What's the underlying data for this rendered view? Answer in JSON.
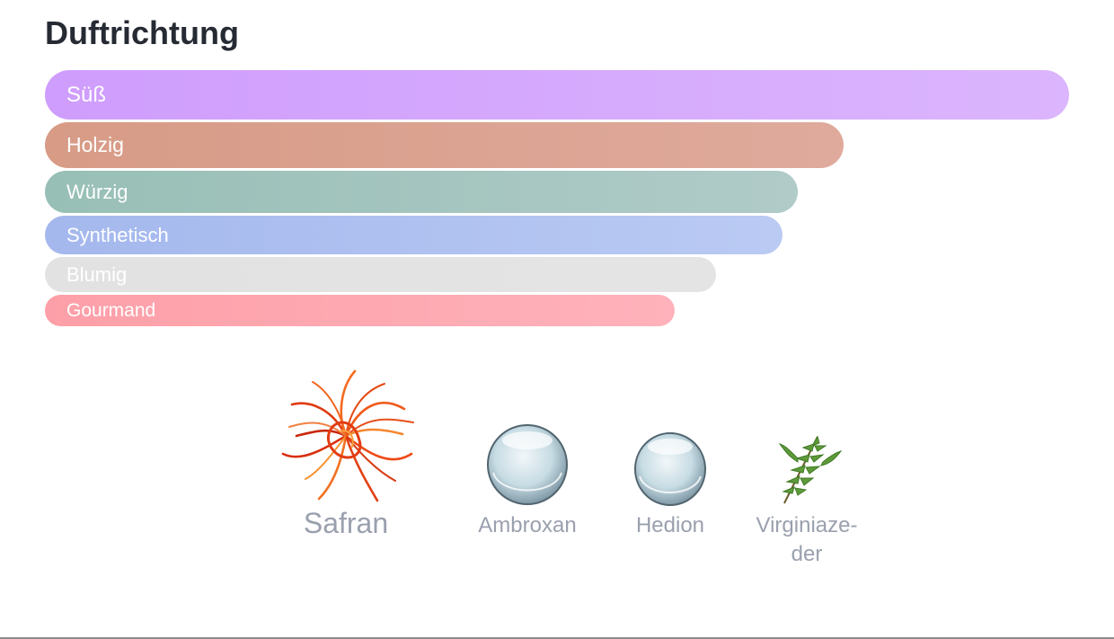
{
  "page": {
    "title": "Duftrichtung"
  },
  "chart_data": {
    "type": "bar",
    "orientation": "horizontal",
    "title": "Duftrichtung",
    "categories": [
      "Süß",
      "Holzig",
      "Würzig",
      "Synthetisch",
      "Blumig",
      "Gourmand"
    ],
    "values": [
      100,
      78,
      73.5,
      72,
      65.5,
      61.5
    ],
    "xlim": [
      0,
      100
    ],
    "grid": false,
    "colors": [
      [
        "#cf9dfd",
        "#dbb5fd"
      ],
      [
        "#d79b86",
        "#dfaa9c"
      ],
      [
        "#98bfb6",
        "#b0cbc8"
      ],
      [
        "#a4b8ed",
        "#bacaf3"
      ],
      [
        "#e2e2e2",
        "#e4e4e4"
      ],
      [
        "#fd9fa8",
        "#ffb2bb"
      ]
    ]
  },
  "ingredients": [
    {
      "name": "Safran",
      "icon": "saffron-icon"
    },
    {
      "name": "Ambroxan",
      "icon": "water-drop-icon"
    },
    {
      "name": "Hedion",
      "icon": "water-drop-icon"
    },
    {
      "name": "Virginiaze-\nder",
      "icon": "cedar-branch-icon"
    }
  ]
}
